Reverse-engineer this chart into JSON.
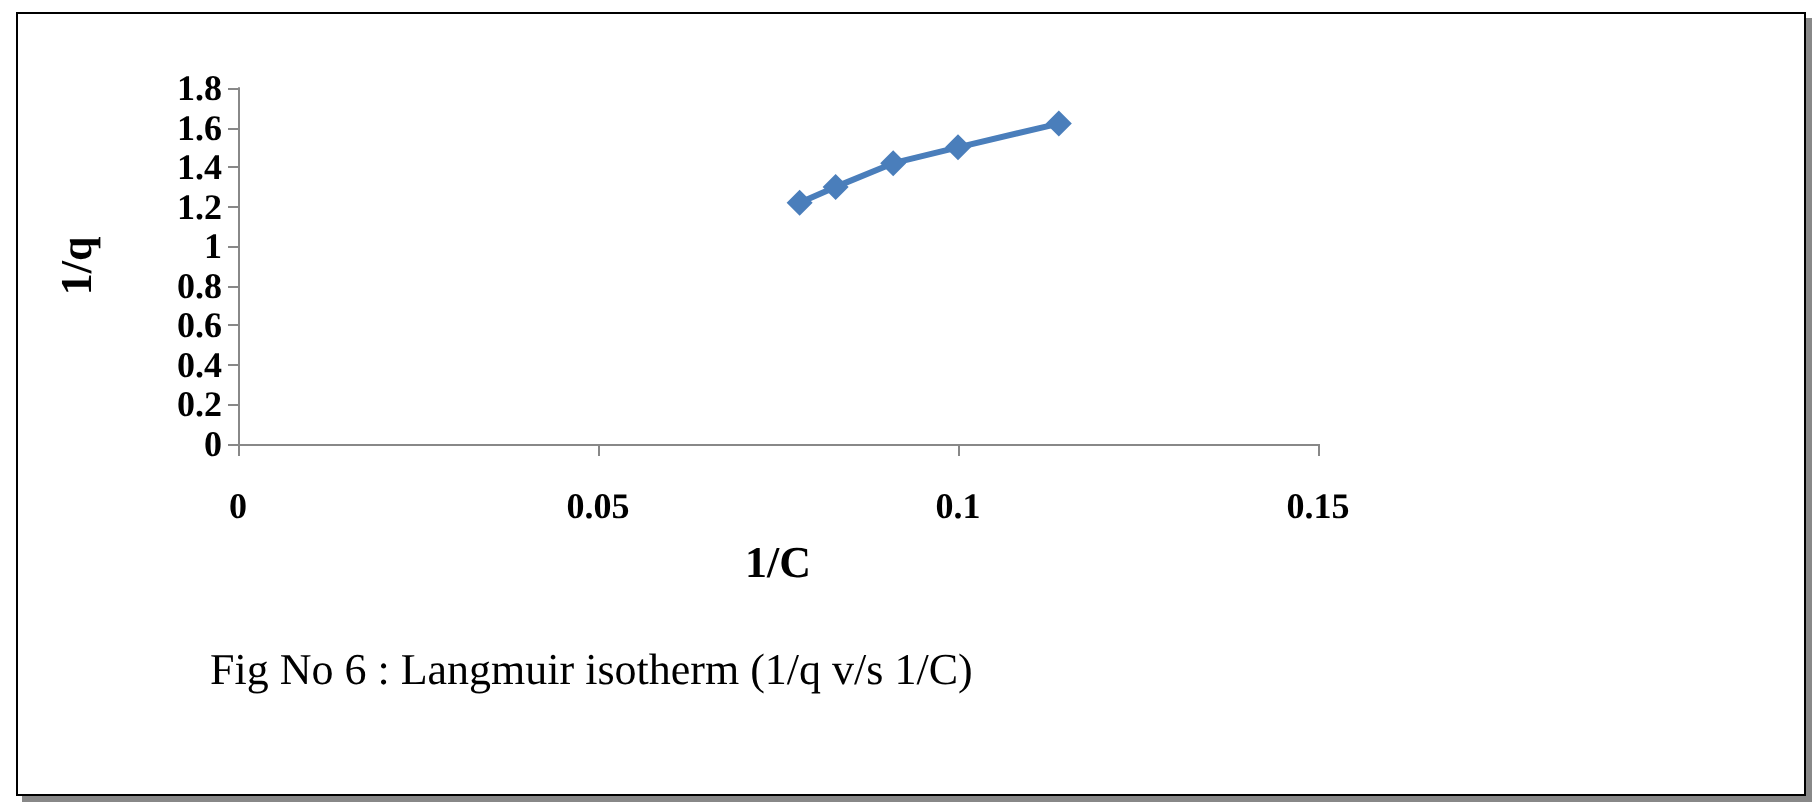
{
  "chart_data": {
    "type": "line",
    "xlabel": "1/C",
    "ylabel": "1/q",
    "x": [
      0.078,
      0.083,
      0.091,
      0.1,
      0.114
    ],
    "series": [
      {
        "color": "#4a7ebb",
        "values": [
          1.22,
          1.3,
          1.42,
          1.5,
          1.62
        ]
      }
    ],
    "xlim": [
      0,
      0.15
    ],
    "xticks": [
      0,
      0.05,
      0.1,
      0.15
    ],
    "ylim": [
      0,
      1.8
    ],
    "yticks": [
      0,
      0.2,
      0.4,
      0.6,
      0.8,
      1,
      1.2,
      1.4,
      1.6,
      1.8
    ],
    "grid": false,
    "marker": "diamond",
    "line_style": "solid",
    "annotations": [
      "Fig No 6 : Langmuir isotherm (1/q v/s 1/C)"
    ]
  }
}
